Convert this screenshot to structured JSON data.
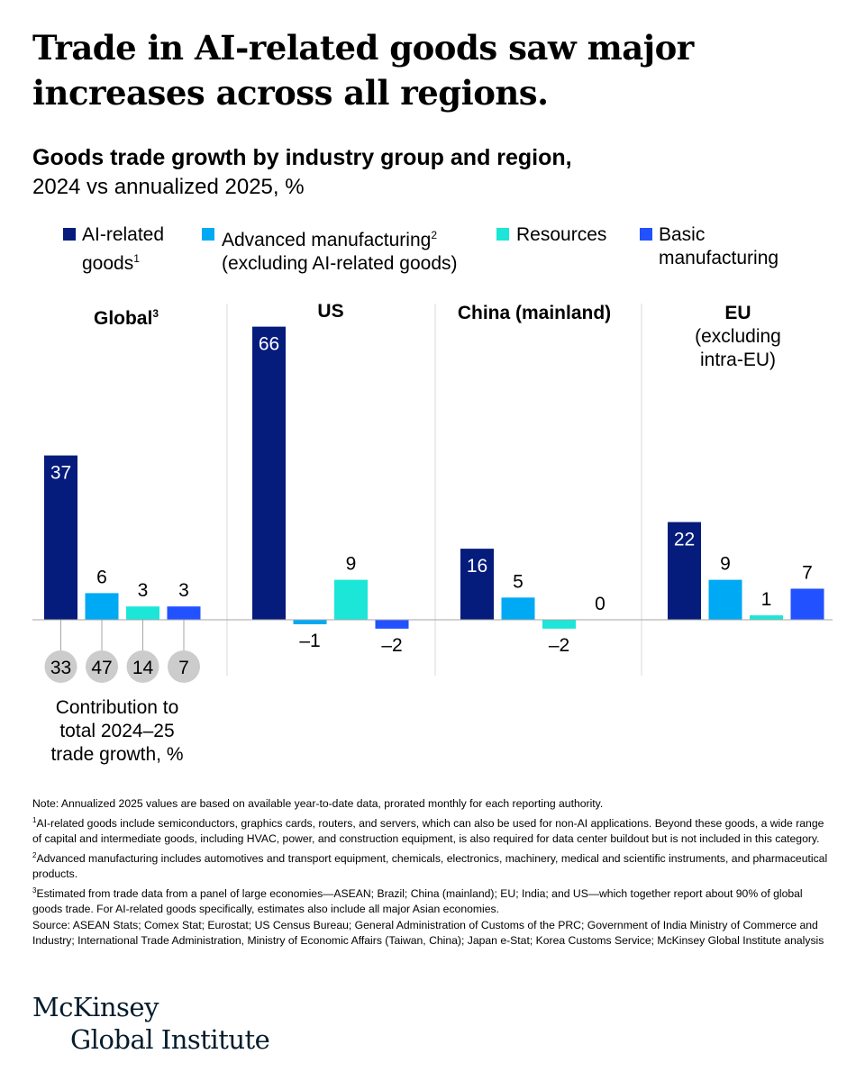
{
  "headline": "Trade in AI-related goods saw major increases across all regions.",
  "chart_data": {
    "type": "bar",
    "title": "Goods trade growth by industry group and region,",
    "subtitle": "2024 vs annualized 2025, %",
    "series": [
      {
        "name": "AI-related goods",
        "sup": "1",
        "color": "#051c7c",
        "values": [
          37,
          66,
          16,
          22
        ]
      },
      {
        "name": "Advanced manufacturing (excluding AI-related goods)",
        "sup": "2",
        "color": "#00a9f4",
        "values": [
          6,
          -1,
          5,
          9
        ]
      },
      {
        "name": "Resources",
        "sup": "",
        "color": "#1ce6d7",
        "values": [
          3,
          9,
          -2,
          1
        ]
      },
      {
        "name": "Basic manufacturing",
        "sup": "",
        "color": "#2251ff",
        "values": [
          3,
          -2,
          0,
          7
        ]
      }
    ],
    "categories": [
      {
        "name": "Global",
        "sup": "3",
        "note": ""
      },
      {
        "name": "US",
        "sup": "",
        "note": ""
      },
      {
        "name": "China (mainland)",
        "sup": "",
        "note": ""
      },
      {
        "name": "EU",
        "sup": "",
        "note": "(excluding intra-EU)"
      }
    ],
    "value_labels": [
      [
        "37",
        "6",
        "3",
        "3"
      ],
      [
        "66",
        "–1",
        "9",
        "–2"
      ],
      [
        "16",
        "5",
        "–2",
        "0"
      ],
      [
        "22",
        "9",
        "1",
        "7"
      ]
    ],
    "contribution": {
      "values": [
        33,
        47,
        14,
        7
      ],
      "label": "Contribution to total 2024–25 trade growth, %"
    }
  },
  "legend": {
    "item1": {
      "line1": "AI-related",
      "line2": "goods",
      "sup": "1"
    },
    "item2": {
      "line1": "Advanced manufacturing",
      "sup": "2",
      "line2": "(excluding AI-related goods)"
    },
    "item3": {
      "line1": "Resources"
    },
    "item4": {
      "line1": "Basic",
      "line2": "manufacturing"
    }
  },
  "region_titles": {
    "global": "Global",
    "global_sup": "3",
    "us": "US",
    "china": "China (mainland)",
    "eu": "EU",
    "eu_note1": "(excluding",
    "eu_note2": "intra-EU)"
  },
  "contribution_label": {
    "line1": "Contribution to",
    "line2": "total 2024–25",
    "line3": "trade growth, %"
  },
  "footnotes": {
    "note": "Note: Annualized 2025 values are based on available year-to-date data, prorated monthly for each reporting authority.",
    "fn1_sup": "1",
    "fn1": "AI-related goods include semiconductors, graphics cards, routers, and servers, which can also be used for non-AI applications. Beyond these goods, a wide range of capital and intermediate goods, including HVAC, power, and construction equipment, is also required for data center buildout but is not included in this category.",
    "fn2_sup": "2",
    "fn2": "Advanced manufacturing includes automotives and transport equipment, chemicals, electronics, machinery, medical and scientific instruments, and pharmaceutical products.",
    "fn3_sup": "3",
    "fn3": "Estimated from trade data from a panel of large economies—ASEAN; Brazil; China (mainland); EU; India; and US—which together report about 90% of global goods trade. For AI-related goods specifically, estimates also include all major Asian economies.",
    "source": "Source: ASEAN Stats; Comex Stat; Eurostat; US Census Bureau; General Administration of Customs of the PRC; Government of India Ministry of Commerce and Industry; International Trade Administration, Ministry of Economic Affairs (Taiwan, China); Japan e-Stat; Korea Customs Service; McKinsey Global Institute analysis"
  },
  "logo": {
    "line1": "McKinsey",
    "line2": "Global Institute"
  }
}
